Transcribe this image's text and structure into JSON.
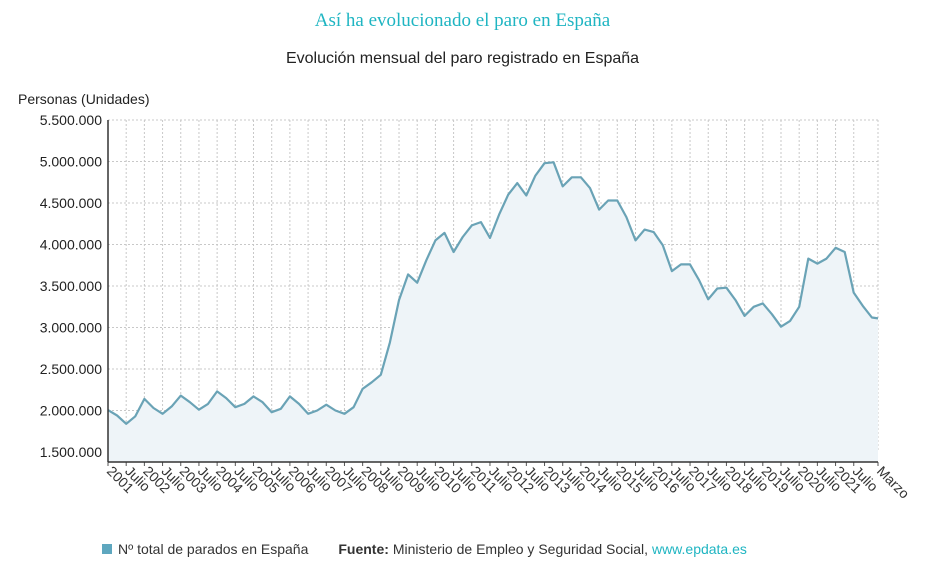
{
  "chart_data": {
    "type": "area",
    "title": "Así ha evolucionado el paro en España",
    "subtitle": "Evolución mensual del paro registrado en España",
    "ylabel": "Personas (Unidades)",
    "ylim": [
      1500000,
      5500000
    ],
    "yticks": [
      "1.500.000",
      "2.000.000",
      "2.500.000",
      "3.000.000",
      "3.500.000",
      "4.000.000",
      "4.500.000",
      "5.000.000",
      "5.500.000"
    ],
    "yticks_values": [
      1500000,
      2000000,
      2500000,
      3000000,
      3500000,
      4000000,
      4500000,
      5000000,
      5500000
    ],
    "xticks": [
      "2001",
      "Julio",
      "2002",
      "Julio",
      "2003",
      "Julio",
      "2004",
      "Julio",
      "2005",
      "Julio",
      "2006",
      "Julio",
      "2007",
      "Julio",
      "2008",
      "Julio",
      "2009",
      "Julio",
      "2010",
      "Julio",
      "2011",
      "Julio",
      "2012",
      "Julio",
      "2013",
      "Julio",
      "2014",
      "Julio",
      "2015",
      "Julio",
      "2016",
      "Julio",
      "2017",
      "Julio",
      "2018",
      "Julio",
      "2019",
      "Julio",
      "2020",
      "Julio",
      "2021",
      "Julio",
      "Marzo"
    ],
    "grid": true,
    "legend": "bottom",
    "series": [
      {
        "name": "Nº total de parados en España",
        "color": "#6aa3b6",
        "x": [
          "2001-01",
          "2001-04",
          "2001-07",
          "2001-10",
          "2002-01",
          "2002-04",
          "2002-07",
          "2002-10",
          "2003-01",
          "2003-04",
          "2003-07",
          "2003-10",
          "2004-01",
          "2004-04",
          "2004-07",
          "2004-10",
          "2005-01",
          "2005-04",
          "2005-07",
          "2005-10",
          "2006-01",
          "2006-04",
          "2006-07",
          "2006-10",
          "2007-01",
          "2007-04",
          "2007-07",
          "2007-10",
          "2008-01",
          "2008-04",
          "2008-07",
          "2008-10",
          "2009-01",
          "2009-04",
          "2009-07",
          "2009-10",
          "2010-01",
          "2010-04",
          "2010-07",
          "2010-10",
          "2011-01",
          "2011-04",
          "2011-07",
          "2011-10",
          "2012-01",
          "2012-04",
          "2012-07",
          "2012-10",
          "2013-01",
          "2013-04",
          "2013-07",
          "2013-10",
          "2014-01",
          "2014-04",
          "2014-07",
          "2014-10",
          "2015-01",
          "2015-04",
          "2015-07",
          "2015-10",
          "2016-01",
          "2016-04",
          "2016-07",
          "2016-10",
          "2017-01",
          "2017-04",
          "2017-07",
          "2017-10",
          "2018-01",
          "2018-04",
          "2018-07",
          "2018-10",
          "2019-01",
          "2019-04",
          "2019-07",
          "2019-10",
          "2020-01",
          "2020-04",
          "2020-07",
          "2020-10",
          "2021-01",
          "2021-04",
          "2021-07",
          "2021-10",
          "2022-01",
          "2022-03"
        ],
        "values": [
          2005000,
          1940000,
          1840000,
          1930000,
          2140000,
          2030000,
          1960000,
          2050000,
          2180000,
          2100000,
          2010000,
          2080000,
          2230000,
          2150000,
          2040000,
          2080000,
          2170000,
          2100000,
          1980000,
          2020000,
          2170000,
          2080000,
          1960000,
          2000000,
          2070000,
          2000000,
          1960000,
          2040000,
          2260000,
          2340000,
          2430000,
          2820000,
          3330000,
          3640000,
          3540000,
          3810000,
          4050000,
          4140000,
          3910000,
          4090000,
          4230000,
          4270000,
          4080000,
          4360000,
          4600000,
          4740000,
          4590000,
          4830000,
          4980000,
          4990000,
          4700000,
          4810000,
          4810000,
          4680000,
          4420000,
          4530000,
          4530000,
          4330000,
          4050000,
          4180000,
          4150000,
          3990000,
          3680000,
          3760000,
          3760000,
          3570000,
          3340000,
          3470000,
          3480000,
          3330000,
          3140000,
          3250000,
          3290000,
          3160000,
          3010000,
          3080000,
          3250000,
          3830000,
          3770000,
          3830000,
          3960000,
          3910000,
          3420000,
          3260000,
          3120000,
          3110000
        ]
      }
    ]
  },
  "footer": {
    "legend_label": "Nº total de parados en España",
    "source_label": "Fuente:",
    "source_text": "Ministerio de Empleo y Seguridad Social,",
    "link": "www.epdata.es"
  }
}
